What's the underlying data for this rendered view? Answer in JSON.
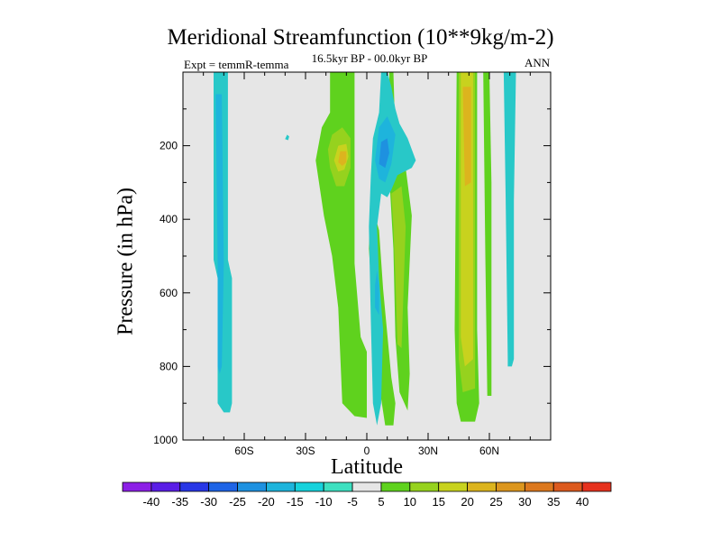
{
  "chart_data": {
    "type": "heatmap",
    "title": "Meridional Streamfunction (10**9kg/m-2)",
    "subtitle": "16.5kyr BP - 00.0kyr BP",
    "left_label": "Expt = temmR-temma",
    "right_label": "ANN",
    "xlabel": "Latitude",
    "ylabel": "Pressure (in hPa)",
    "xlim": [
      -90,
      90
    ],
    "ylim": [
      1000,
      0
    ],
    "x_ticks": [
      {
        "value": -60,
        "label": "60S"
      },
      {
        "value": -30,
        "label": "30S"
      },
      {
        "value": 0,
        "label": "0"
      },
      {
        "value": 30,
        "label": "30N"
      },
      {
        "value": 60,
        "label": "60N"
      }
    ],
    "y_ticks": [
      {
        "value": 200,
        "label": "200"
      },
      {
        "value": 400,
        "label": "400"
      },
      {
        "value": 600,
        "label": "600"
      },
      {
        "value": 800,
        "label": "800"
      },
      {
        "value": 1000,
        "label": "1000"
      }
    ],
    "background_color": "#e6e6e6",
    "colorbar": {
      "levels": [
        "-40",
        "-35",
        "-30",
        "-25",
        "-20",
        "-15",
        "-10",
        "-5",
        "5",
        "10",
        "15",
        "20",
        "25",
        "30",
        "35",
        "40"
      ],
      "colors": [
        "#8c1fe6",
        "#5a1ee6",
        "#2837e6",
        "#1e64e6",
        "#1e91e0",
        "#1eb4dc",
        "#16d2dc",
        "#3de0c0",
        "#e6e6e6",
        "#5fd21e",
        "#96d21e",
        "#c8d21e",
        "#dcb41e",
        "#dc961e",
        "#dc781e",
        "#dc5a1e",
        "#e6321e"
      ]
    },
    "regions": [
      {
        "label": "-10",
        "color": "#28c8c8",
        "points": [
          [
            -75,
            0
          ],
          [
            -68,
            0
          ],
          [
            -68,
            510
          ],
          [
            -66,
            560
          ],
          [
            -66,
            900
          ],
          [
            -67,
            925
          ],
          [
            -70,
            925
          ],
          [
            -73,
            900
          ],
          [
            -73,
            560
          ],
          [
            -75,
            510
          ]
        ]
      },
      {
        "label": "-15",
        "color": "#1eb4dc",
        "points": [
          [
            -74,
            60
          ],
          [
            -71,
            60
          ],
          [
            -70,
            520
          ],
          [
            -71,
            800
          ],
          [
            -72,
            820
          ],
          [
            -73,
            800
          ],
          [
            -73,
            520
          ]
        ]
      },
      {
        "label": "-10",
        "color": "#28c8c8",
        "points": [
          [
            -39,
            170
          ],
          [
            -38,
            175
          ],
          [
            -38.5,
            185
          ],
          [
            -40,
            182
          ]
        ]
      },
      {
        "label": "5",
        "color": "#5fd21e",
        "points": [
          [
            -18,
            0
          ],
          [
            -6,
            0
          ],
          [
            -6,
            520
          ],
          [
            -3,
            720
          ],
          [
            0,
            760
          ],
          [
            0,
            940
          ],
          [
            -6,
            935
          ],
          [
            -12,
            900
          ],
          [
            -14,
            640
          ],
          [
            -17,
            500
          ],
          [
            -21,
            390
          ],
          [
            -25,
            240
          ],
          [
            -22,
            150
          ],
          [
            -18,
            110
          ]
        ]
      },
      {
        "label": "10",
        "color": "#96d21e",
        "points": [
          [
            -17,
            170
          ],
          [
            -12,
            150
          ],
          [
            -8,
            180
          ],
          [
            -8,
            260
          ],
          [
            -11,
            310
          ],
          [
            -15,
            310
          ],
          [
            -18,
            260
          ],
          [
            -19,
            210
          ]
        ]
      },
      {
        "label": "20",
        "color": "#c8d21e",
        "points": [
          [
            -14,
            200
          ],
          [
            -10,
            195
          ],
          [
            -9,
            230
          ],
          [
            -11,
            265
          ],
          [
            -14,
            270
          ],
          [
            -16,
            240
          ]
        ]
      },
      {
        "label": "25",
        "color": "#dcb41e",
        "points": [
          [
            -13,
            215
          ],
          [
            -10,
            215
          ],
          [
            -10,
            245
          ],
          [
            -12,
            255
          ],
          [
            -14,
            245
          ]
        ]
      },
      {
        "label": "5",
        "color": "#5fd21e",
        "points": [
          [
            2,
            350
          ],
          [
            6,
            430
          ],
          [
            8,
            590
          ],
          [
            12,
            830
          ],
          [
            14,
            900
          ],
          [
            13,
            960
          ],
          [
            9,
            960
          ],
          [
            6,
            850
          ],
          [
            3,
            650
          ],
          [
            1,
            480
          ]
        ]
      },
      {
        "label": "5",
        "color": "#5fd21e",
        "points": [
          [
            11,
            0
          ],
          [
            13,
            0
          ],
          [
            14,
            180
          ],
          [
            15,
            280
          ],
          [
            13,
            210
          ],
          [
            11,
            140
          ]
        ]
      },
      {
        "label": "5",
        "color": "#5fd21e",
        "points": [
          [
            11,
            280
          ],
          [
            19,
            260
          ],
          [
            22,
            390
          ],
          [
            20,
            640
          ],
          [
            21,
            820
          ],
          [
            20,
            920
          ],
          [
            16,
            870
          ],
          [
            14,
            720
          ],
          [
            13,
            480
          ]
        ]
      },
      {
        "label": "10",
        "color": "#96d21e",
        "points": [
          [
            12,
            330
          ],
          [
            17,
            310
          ],
          [
            19,
            420
          ],
          [
            18,
            590
          ],
          [
            17,
            750
          ],
          [
            15,
            740
          ],
          [
            14,
            560
          ],
          [
            13,
            420
          ]
        ]
      },
      {
        "label": "-10",
        "color": "#28c8c8",
        "points": [
          [
            7,
            0
          ],
          [
            10,
            0
          ],
          [
            12,
            40
          ],
          [
            14,
            100
          ],
          [
            16,
            140
          ],
          [
            20,
            180
          ],
          [
            24,
            240
          ],
          [
            22,
            260
          ],
          [
            15,
            280
          ],
          [
            12,
            320
          ],
          [
            10,
            340
          ],
          [
            7,
            330
          ],
          [
            5,
            420
          ],
          [
            6,
            560
          ],
          [
            8,
            700
          ],
          [
            7,
            900
          ],
          [
            5,
            960
          ],
          [
            3,
            900
          ],
          [
            2,
            680
          ],
          [
            1,
            420
          ],
          [
            2,
            280
          ],
          [
            3,
            180
          ],
          [
            6,
            110
          ]
        ]
      },
      {
        "label": "-15",
        "color": "#1eb4dc",
        "points": [
          [
            6,
            150
          ],
          [
            10,
            120
          ],
          [
            14,
            170
          ],
          [
            12,
            250
          ],
          [
            9,
            300
          ],
          [
            6,
            290
          ],
          [
            4,
            240
          ]
        ]
      },
      {
        "label": "-20",
        "color": "#1e91e0",
        "points": [
          [
            7,
            190
          ],
          [
            10,
            180
          ],
          [
            11,
            220
          ],
          [
            9,
            260
          ],
          [
            6,
            250
          ]
        ]
      },
      {
        "label": "-15",
        "color": "#1eb4dc",
        "points": [
          [
            5,
            540
          ],
          [
            6,
            580
          ],
          [
            6,
            660
          ],
          [
            4,
            640
          ],
          [
            4,
            580
          ]
        ]
      },
      {
        "label": "5",
        "color": "#5fd21e",
        "points": [
          [
            44,
            0
          ],
          [
            54,
            0
          ],
          [
            54,
            700
          ],
          [
            55,
            900
          ],
          [
            53,
            950
          ],
          [
            46,
            950
          ],
          [
            44,
            900
          ],
          [
            43,
            700
          ]
        ]
      },
      {
        "label": "10",
        "color": "#96d21e",
        "points": [
          [
            45,
            0
          ],
          [
            53,
            0
          ],
          [
            53,
            860
          ],
          [
            47,
            870
          ],
          [
            45,
            780
          ]
        ]
      },
      {
        "label": "15",
        "color": "#c8d21e",
        "points": [
          [
            46,
            0
          ],
          [
            52,
            0
          ],
          [
            52,
            780
          ],
          [
            48,
            800
          ],
          [
            46,
            720
          ]
        ]
      },
      {
        "label": "20",
        "color": "#dcb41e",
        "points": [
          [
            47,
            40
          ],
          [
            51,
            40
          ],
          [
            51,
            300
          ],
          [
            48,
            310
          ]
        ]
      },
      {
        "label": "5",
        "color": "#5fd21e",
        "points": [
          [
            57,
            0
          ],
          [
            60,
            0
          ],
          [
            61,
            300
          ],
          [
            61,
            700
          ],
          [
            61,
            880
          ],
          [
            59,
            880
          ],
          [
            58,
            500
          ]
        ]
      },
      {
        "label": "-10",
        "color": "#28c8c8",
        "points": [
          [
            67,
            0
          ],
          [
            73,
            0
          ],
          [
            72,
            350
          ],
          [
            72,
            780
          ],
          [
            71,
            800
          ],
          [
            69,
            800
          ],
          [
            69,
            780
          ],
          [
            68,
            350
          ]
        ]
      }
    ]
  }
}
